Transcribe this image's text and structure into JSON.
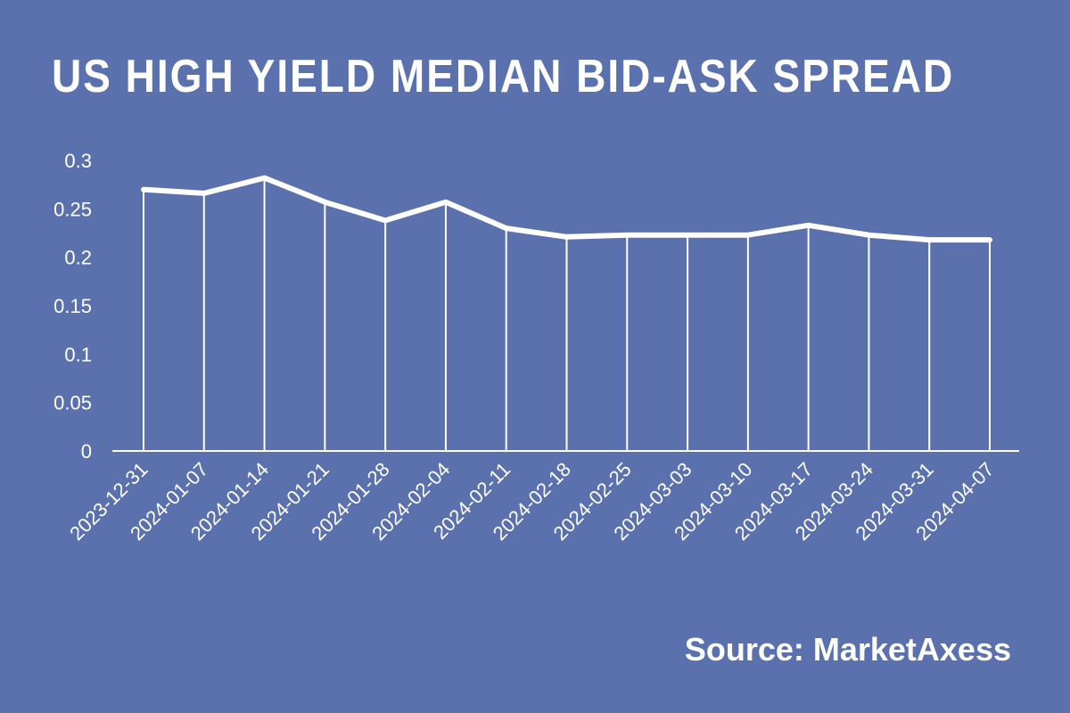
{
  "chart_data": {
    "type": "line",
    "title": "US HIGH YIELD MEDIAN BID-ASK SPREAD",
    "x": [
      "2023-12-31",
      "2024-01-07",
      "2024-01-14",
      "2024-01-21",
      "2024-01-28",
      "2024-02-04",
      "2024-02-11",
      "2024-02-18",
      "2024-02-25",
      "2024-03-03",
      "2024-03-10",
      "2024-03-17",
      "2024-03-24",
      "2024-03-31",
      "2024-04-07"
    ],
    "series": [
      {
        "values": [
          0.27,
          0.266,
          0.282,
          0.257,
          0.238,
          0.257,
          0.23,
          0.221,
          0.223,
          0.223,
          0.223,
          0.233,
          0.223,
          0.218,
          0.218
        ]
      }
    ],
    "yticks": [
      "0",
      "0.05",
      "0.1",
      "0.15",
      "0.2",
      "0.25",
      "0.3"
    ],
    "ylim": [
      0,
      0.3
    ],
    "xlabel": "",
    "ylabel": "",
    "grid": false,
    "drop_lines": true,
    "colors": {
      "background": "#5b71ad",
      "line": "#ffffff"
    }
  },
  "source": "Source: MarketAxess"
}
